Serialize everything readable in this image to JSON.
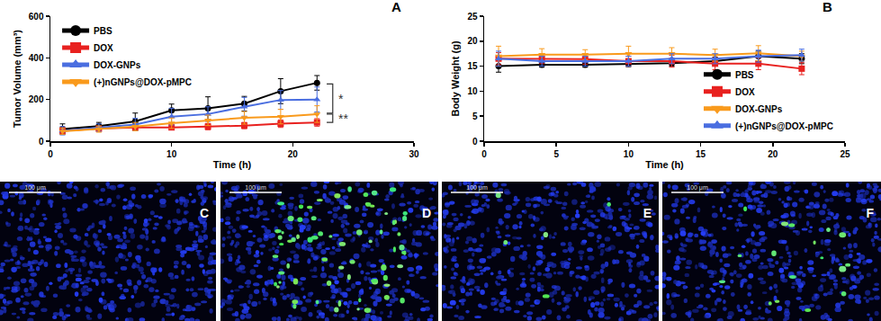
{
  "chart_data": [
    {
      "type": "line",
      "title": "A",
      "x_label": "Time (h)",
      "y_label": "Tumor Volume (mm³)",
      "xlim": [
        0,
        30
      ],
      "xticks": [
        0,
        10,
        20,
        30
      ],
      "ylim": [
        0,
        600
      ],
      "yticks": [
        0,
        200,
        400,
        600
      ],
      "grid": false,
      "legend": "upper left",
      "x": [
        1,
        4,
        7,
        10,
        13,
        16,
        19,
        22
      ],
      "series": [
        {
          "name": "PBS",
          "color": "#000000",
          "marker": "circle",
          "values": [
            58,
            72,
            95,
            148,
            158,
            180,
            240,
            280
          ],
          "errors": [
            25,
            18,
            40,
            30,
            55,
            35,
            60,
            35
          ]
        },
        {
          "name": "DOX",
          "color": "#e8211f",
          "marker": "square",
          "values": [
            50,
            60,
            66,
            66,
            70,
            75,
            84,
            90
          ],
          "errors": [
            15,
            10,
            15,
            12,
            15,
            15,
            18,
            18
          ]
        },
        {
          "name": "DOX-GNPs",
          "color": "#4a6ee0",
          "marker": "triangle-up",
          "values": [
            50,
            65,
            80,
            118,
            130,
            165,
            198,
            200
          ],
          "errors": [
            20,
            18,
            30,
            40,
            35,
            45,
            45,
            60
          ]
        },
        {
          "name": "(+)nGNPs@DOX-pMPC",
          "color": "#f99a1c",
          "marker": "triangle-down",
          "values": [
            48,
            58,
            70,
            86,
            100,
            112,
            118,
            130
          ],
          "errors": [
            15,
            15,
            20,
            25,
            25,
            30,
            35,
            40
          ]
        }
      ],
      "annotations": [
        {
          "text": "*",
          "x": 23.3,
          "y_from": 275,
          "y_to": 135
        },
        {
          "text": "**",
          "x": 23.3,
          "y_from": 130,
          "y_to": 90
        }
      ]
    },
    {
      "type": "line",
      "title": "B",
      "x_label": "Time (h)",
      "y_label": "Body Weight (g)",
      "xlim": [
        0,
        25
      ],
      "xticks": [
        0,
        5,
        10,
        15,
        20,
        25
      ],
      "ylim": [
        0,
        25
      ],
      "yticks": [
        0,
        5,
        10,
        15,
        20,
        25
      ],
      "grid": false,
      "legend": "lower right",
      "x": [
        1,
        4,
        7,
        10,
        13,
        16,
        19,
        22
      ],
      "series": [
        {
          "name": "PBS",
          "color": "#000000",
          "marker": "circle",
          "values": [
            15,
            15.3,
            15.3,
            15.5,
            15.6,
            16,
            17,
            16.5
          ],
          "errors": [
            1.2,
            0.5,
            0.5,
            0.6,
            0.6,
            0.8,
            1,
            1
          ]
        },
        {
          "name": "DOX",
          "color": "#e8211f",
          "marker": "square",
          "values": [
            16.5,
            16.5,
            16.4,
            16,
            16,
            15.5,
            15.5,
            14.5
          ],
          "errors": [
            1.2,
            1,
            1,
            1,
            1.2,
            1.2,
            1.2,
            1.2
          ]
        },
        {
          "name": "DOX-GNPs",
          "color": "#f99a1c",
          "marker": "triangle-down",
          "values": [
            17,
            17.3,
            17.3,
            17.5,
            17.5,
            17.2,
            17.6,
            17
          ],
          "errors": [
            2,
            1.2,
            1,
            1.5,
            1.2,
            1.2,
            1.5,
            1
          ]
        },
        {
          "name": "(+)nGNPs@DOX-pMPC",
          "color": "#4a6ee0",
          "marker": "triangle-up",
          "values": [
            16.5,
            16,
            16,
            16,
            16.5,
            16.5,
            17,
            17.2
          ],
          "errors": [
            1.5,
            1,
            1,
            1,
            1,
            1,
            1.2,
            1.2
          ]
        }
      ]
    }
  ],
  "images": [
    {
      "label": "C",
      "scale_bar": "100 μm"
    },
    {
      "label": "D",
      "scale_bar": "100 μm"
    },
    {
      "label": "E",
      "scale_bar": "100 μm"
    },
    {
      "label": "F",
      "scale_bar": "100 μm"
    }
  ]
}
